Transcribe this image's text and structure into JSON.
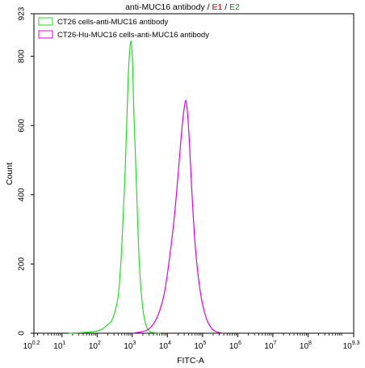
{
  "chart_data": {
    "type": "line",
    "title": {
      "main": "anti-MUC16 antibody",
      "sep1": " / ",
      "e1": "E1",
      "sep2": " / ",
      "e2": "E2",
      "e1_color": "#d40000",
      "e2_color": "#1a8a1a"
    },
    "xlabel": "FITC-A",
    "ylabel": "Count",
    "x_scale": "log",
    "xlim_log10": [
      0.2,
      9.3
    ],
    "ylim": [
      0,
      923
    ],
    "grid": false,
    "legend_position": "top-left",
    "x_ticks": [
      {
        "base": "10",
        "exp": "0.2"
      },
      {
        "base": "10",
        "exp": "1"
      },
      {
        "base": "10",
        "exp": "2"
      },
      {
        "base": "10",
        "exp": "3"
      },
      {
        "base": "10",
        "exp": "4"
      },
      {
        "base": "10",
        "exp": "5"
      },
      {
        "base": "10",
        "exp": "6"
      },
      {
        "base": "10",
        "exp": "7"
      },
      {
        "base": "10",
        "exp": "8"
      },
      {
        "base": "10",
        "exp": "9.3"
      }
    ],
    "y_ticks": [
      "0",
      "200",
      "400",
      "600",
      "800",
      "923"
    ],
    "series": [
      {
        "name": "CT26 cells-anti-MUC16 antibody",
        "color": "#22dd22",
        "x_log10": [
          1.2,
          1.6,
          1.9,
          2.1,
          2.3,
          2.45,
          2.6,
          2.7,
          2.8,
          2.88,
          2.95,
          3.0,
          3.05,
          3.12,
          3.2,
          3.3,
          3.4,
          3.5,
          3.6,
          3.8
        ],
        "y": [
          0,
          2,
          5,
          10,
          25,
          45,
          110,
          250,
          480,
          730,
          840,
          800,
          620,
          420,
          200,
          70,
          20,
          5,
          2,
          0
        ]
      },
      {
        "name": "CT26-Hu-MUC16 cells-anti-MUC16 antibody",
        "color": "#e100e1",
        "x_log10": [
          3.0,
          3.3,
          3.5,
          3.7,
          3.9,
          4.05,
          4.2,
          4.32,
          4.42,
          4.5,
          4.55,
          4.62,
          4.7,
          4.8,
          4.95,
          5.1,
          5.25,
          5.4,
          5.6
        ],
        "y": [
          0,
          5,
          15,
          45,
          110,
          210,
          340,
          480,
          600,
          665,
          660,
          560,
          400,
          240,
          110,
          45,
          15,
          4,
          0
        ]
      }
    ]
  }
}
